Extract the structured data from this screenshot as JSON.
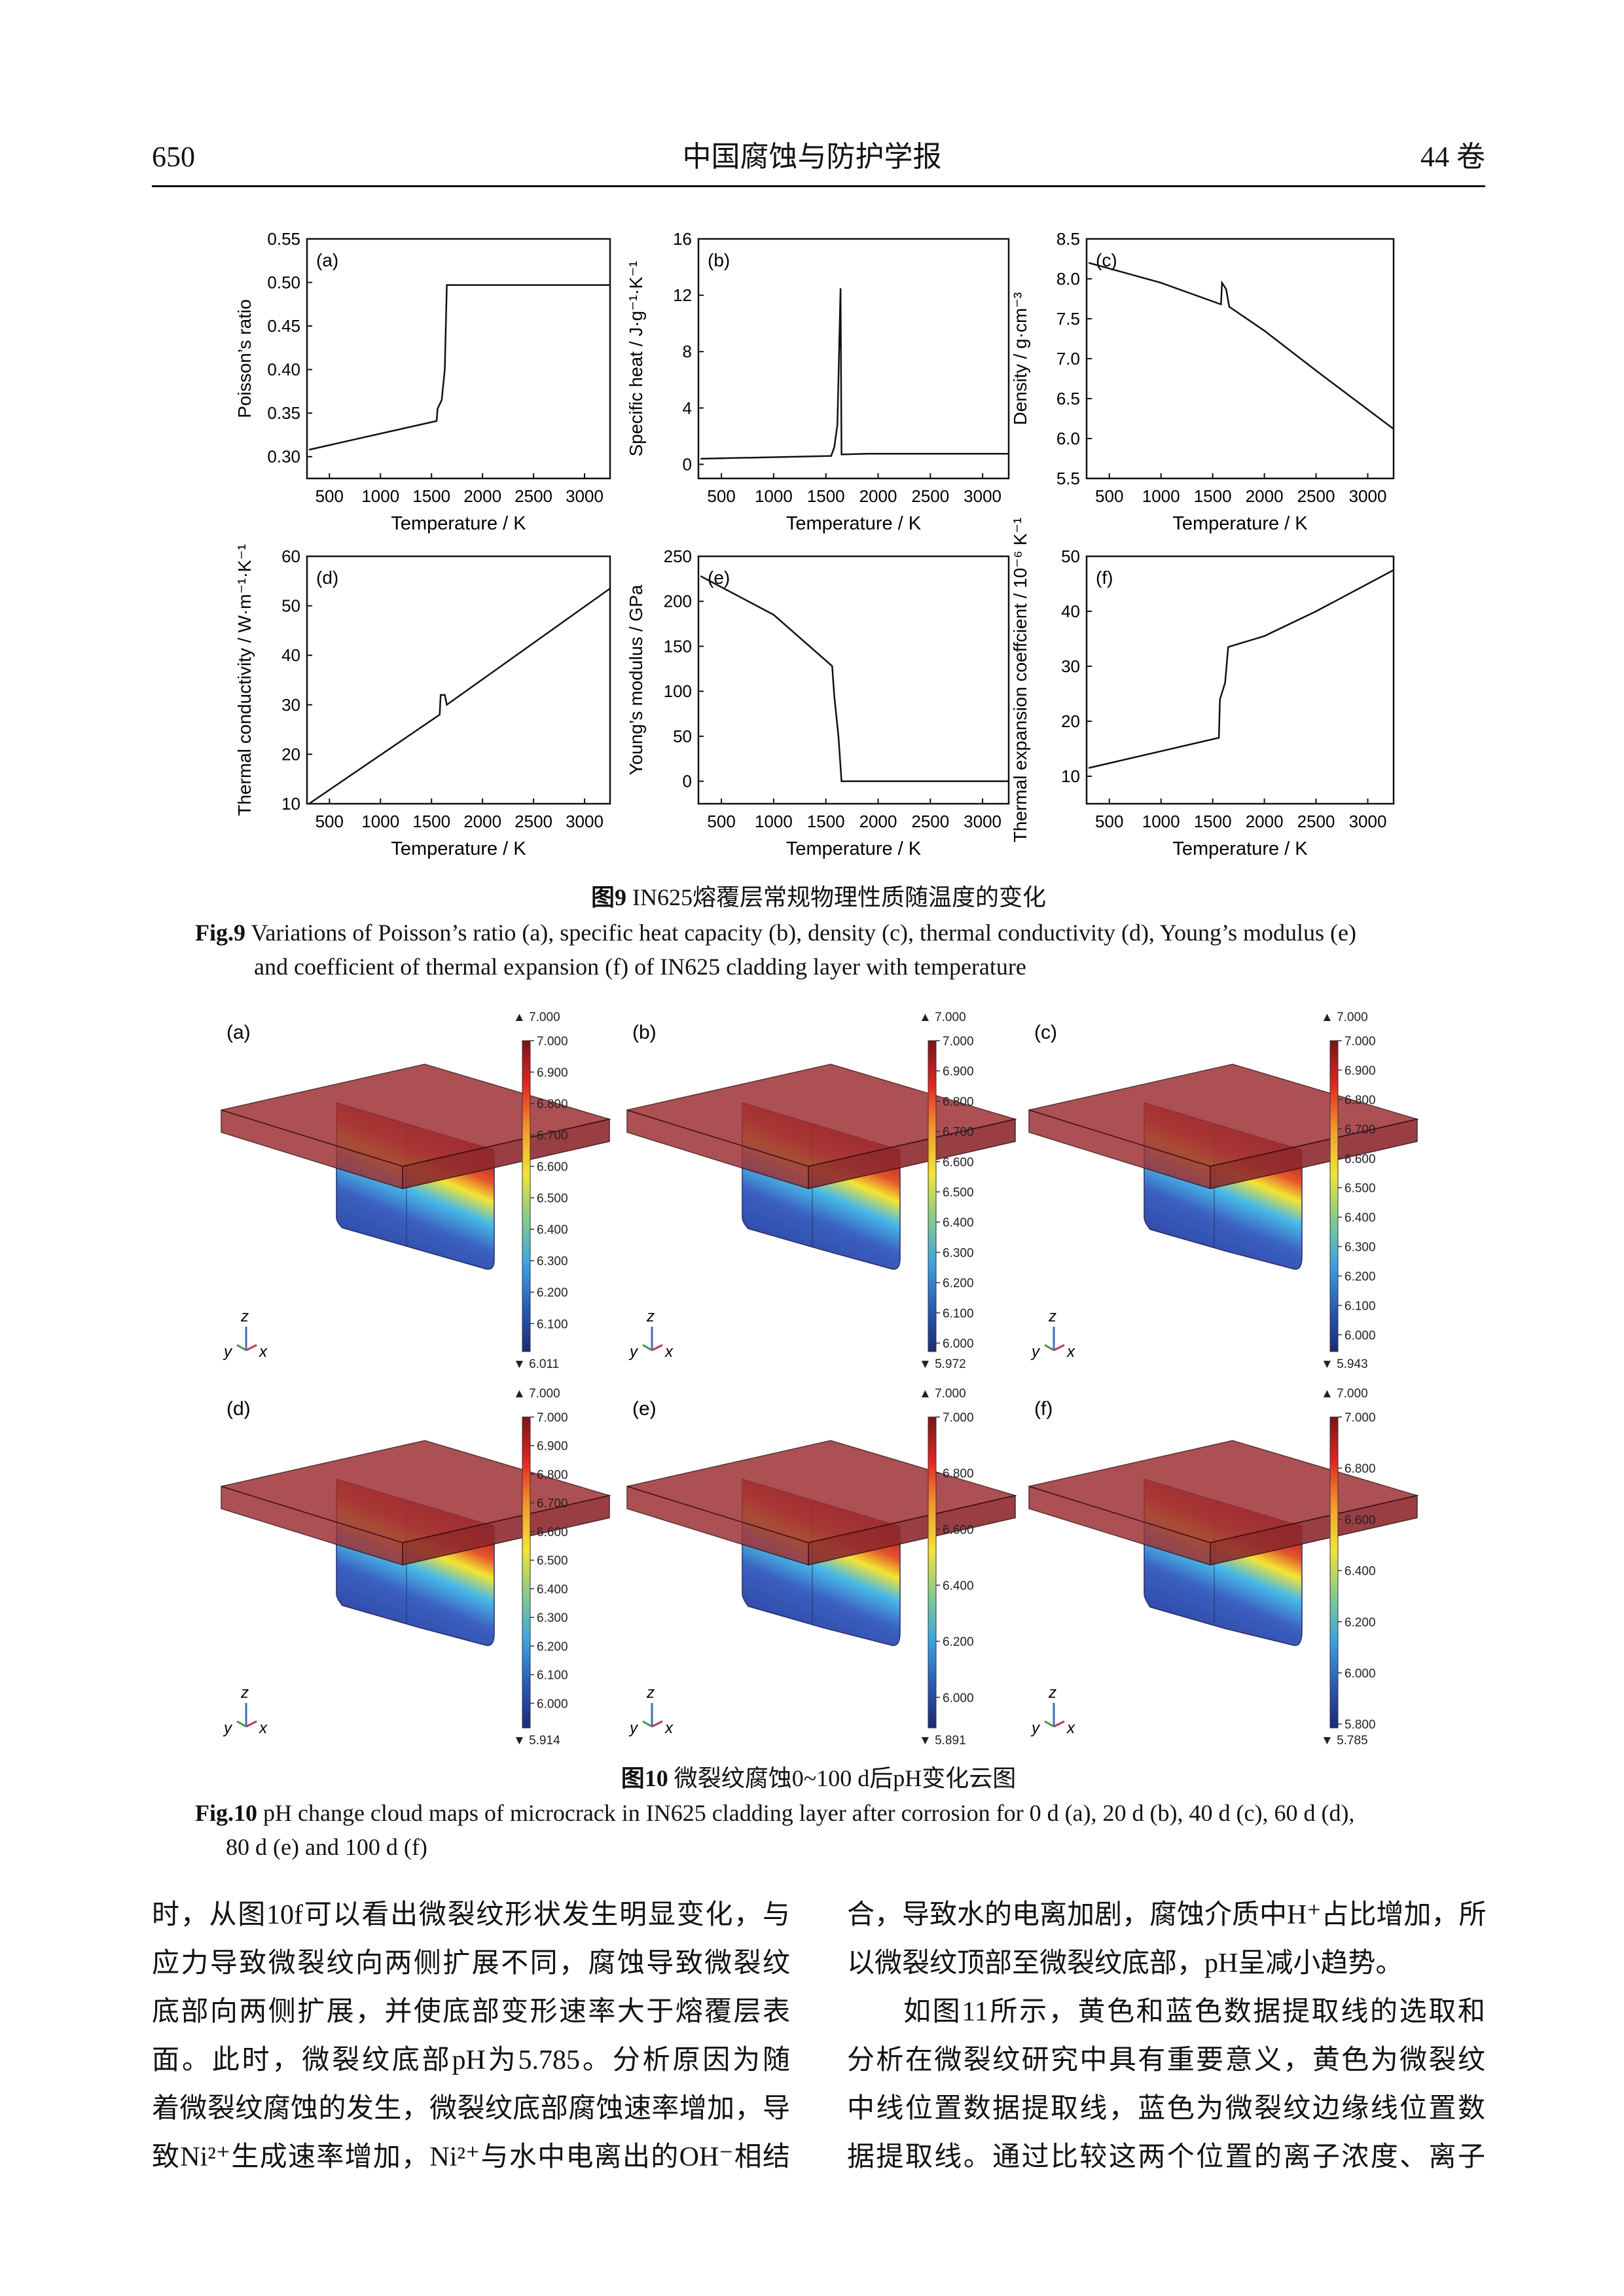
{
  "header": {
    "page_number": "650",
    "journal": "中国腐蚀与防护学报",
    "volume": "44 卷"
  },
  "fig9": {
    "caption_cn_label": "图9",
    "caption_cn": "IN625熔覆层常规物理性质随温度的变化",
    "caption_en_label": "Fig.9",
    "caption_en_1": "Variations of Poisson’s ratio (a), specific heat capacity (b), density (c), thermal conductivity (d), Young’s modulus (e)",
    "caption_en_2": "and coefficient of thermal expansion (f) of IN625 cladding layer with temperature"
  },
  "chart_data": [
    {
      "type": "line",
      "panel": "(a)",
      "xlabel": "Temperature / K",
      "ylabel": "Poisson’s ratio",
      "xlim": [
        280,
        3250
      ],
      "ylim": [
        0.275,
        0.55
      ],
      "xticks": [
        500,
        1000,
        1500,
        2000,
        2500,
        3000
      ],
      "yticks": [
        "0.30",
        "0.35",
        "0.40",
        "0.45",
        "0.50",
        "0.55"
      ],
      "x": [
        300,
        1550,
        1560,
        1600,
        1630,
        1650,
        2000,
        3250
      ],
      "y": [
        0.308,
        0.341,
        0.355,
        0.365,
        0.4,
        0.497,
        0.497,
        0.497
      ]
    },
    {
      "type": "line",
      "panel": "(b)",
      "xlabel": "Temperature / K",
      "ylabel": "Specific heat / J·g⁻¹·K⁻¹",
      "xlim": [
        280,
        3250
      ],
      "ylim": [
        -1,
        16
      ],
      "xticks": [
        500,
        1000,
        1500,
        2000,
        2500,
        3000
      ],
      "yticks": [
        "0",
        "4",
        "8",
        "12",
        "16"
      ],
      "x": [
        300,
        1550,
        1580,
        1610,
        1640,
        1650,
        1900,
        2100,
        3250
      ],
      "y": [
        0.4,
        0.6,
        1.2,
        2.8,
        12.5,
        0.7,
        0.75,
        0.75,
        0.75
      ]
    },
    {
      "type": "line",
      "panel": "(c)",
      "xlabel": "Temperature / K",
      "ylabel": "Density / g·cm⁻³",
      "xlim": [
        280,
        3250
      ],
      "ylim": [
        5.5,
        8.5
      ],
      "xticks": [
        500,
        1000,
        1500,
        2000,
        2500,
        3000
      ],
      "yticks": [
        "5.5",
        "6.0",
        "6.5",
        "7.0",
        "7.5",
        "8.0",
        "8.5"
      ],
      "x": [
        300,
        1000,
        1580,
        1590,
        1630,
        1660,
        2000,
        2500,
        3250
      ],
      "y": [
        8.2,
        7.95,
        7.68,
        7.95,
        7.87,
        7.65,
        7.35,
        6.85,
        6.12
      ]
    },
    {
      "type": "line",
      "panel": "(d)",
      "xlabel": "Temperature / K",
      "ylabel": "Thermal conductivity / W·m⁻¹·K⁻¹",
      "xlim": [
        280,
        3250
      ],
      "ylim": [
        10,
        60
      ],
      "xticks": [
        500,
        1000,
        1500,
        2000,
        2500,
        3000
      ],
      "yticks": [
        "10",
        "20",
        "30",
        "40",
        "50",
        "60"
      ],
      "x": [
        300,
        1580,
        1590,
        1630,
        1650,
        3250
      ],
      "y": [
        10,
        28,
        32,
        32,
        30,
        53.5
      ]
    },
    {
      "type": "line",
      "panel": "(e)",
      "xlabel": "Temperature / K",
      "ylabel": "Young’s modulus / GPa",
      "xlim": [
        280,
        3250
      ],
      "ylim": [
        -25,
        250
      ],
      "xticks": [
        500,
        1000,
        1500,
        2000,
        2500,
        3000
      ],
      "yticks": [
        "0",
        "50",
        "100",
        "150",
        "200",
        "250"
      ],
      "x": [
        300,
        1000,
        1560,
        1580,
        1620,
        1650,
        3250
      ],
      "y": [
        228,
        185,
        128,
        95,
        50,
        0,
        0
      ]
    },
    {
      "type": "line",
      "panel": "(f)",
      "xlabel": "Temperature / K",
      "ylabel": "Thermal expansion coeffcient  / 10⁻⁶ K⁻¹",
      "xlim": [
        280,
        3250
      ],
      "ylim": [
        5,
        50
      ],
      "xticks": [
        500,
        1000,
        1500,
        2000,
        2500,
        3000
      ],
      "yticks": [
        "10",
        "20",
        "30",
        "40",
        "50"
      ],
      "x": [
        300,
        1560,
        1570,
        1620,
        1650,
        2000,
        2500,
        3250
      ],
      "y": [
        11.5,
        17,
        24,
        27,
        33.5,
        35.5,
        40,
        47.5
      ]
    }
  ],
  "fig10": {
    "caption_cn_label": "图10",
    "caption_cn": "微裂纹腐蚀0~100 d后pH变化云图",
    "caption_en_label": "Fig.10",
    "caption_en_1": "pH change cloud maps of microcrack in IN625 cladding layer after corrosion for 0 d (a), 20 d (b), 40 d (c), 60 d (d),",
    "caption_en_2": "80 d (e) and 100 d (f)",
    "axis_labels": {
      "z": "z",
      "y": "y",
      "x": "x"
    },
    "colormap": [
      "#1b2a7a",
      "#2a5cb8",
      "#3aa6e0",
      "#86cc8a",
      "#f3e531",
      "#f59a2c",
      "#e32621",
      "#7c1416"
    ],
    "slab_color": "#9e3236",
    "panels": [
      {
        "label": "(a)",
        "max": "▲ 7.000",
        "min": "▼ 6.011",
        "min_value": 6.011,
        "ticks": [
          "7.000",
          "6.900",
          "6.800",
          "6.700",
          "6.600",
          "6.500",
          "6.400",
          "6.300",
          "6.200",
          "6.100"
        ]
      },
      {
        "label": "(b)",
        "max": "▲ 7.000",
        "min": "▼ 5.972",
        "min_value": 5.972,
        "ticks": [
          "7.000",
          "6.900",
          "6.800",
          "6.700",
          "6.600",
          "6.500",
          "6.400",
          "6.300",
          "6.200",
          "6.100",
          "6.000"
        ]
      },
      {
        "label": "(c)",
        "max": "▲ 7.000",
        "min": "▼ 5.943",
        "min_value": 5.943,
        "ticks": [
          "7.000",
          "6.900",
          "6.800",
          "6.700",
          "6.600",
          "6.500",
          "6.400",
          "6.300",
          "6.200",
          "6.100",
          "6.000"
        ]
      },
      {
        "label": "(d)",
        "max": "▲ 7.000",
        "min": "▼ 5.914",
        "min_value": 5.914,
        "ticks": [
          "7.000",
          "6.900",
          "6.800",
          "6.700",
          "6.600",
          "6.500",
          "6.400",
          "6.300",
          "6.200",
          "6.100",
          "6.000"
        ]
      },
      {
        "label": "(e)",
        "max": "▲ 7.000",
        "min": "▼ 5.891",
        "min_value": 5.891,
        "ticks": [
          "7.000",
          "6.800",
          "6.600",
          "6.400",
          "6.200",
          "6.000"
        ]
      },
      {
        "label": "(f)",
        "max": "▲ 7.000",
        "min": "▼ 5.785",
        "min_value": 5.785,
        "ticks": [
          "7.000",
          "6.800",
          "6.600",
          "6.400",
          "6.200",
          "6.000",
          "5.800"
        ]
      }
    ]
  },
  "body": {
    "left": [
      "时，从图10f可以看出微裂纹形状发生明显变化，与",
      "应力导致微裂纹向两侧扩展不同，腐蚀导致微裂纹",
      "底部向两侧扩展，并使底部变形速率大于熔覆层表",
      "面。此时，微裂纹底部pH为5.785。分析原因为随",
      "着微裂纹腐蚀的发生，微裂纹底部腐蚀速率增加，导",
      "致Ni²⁺生成速率增加，Ni²⁺与水中电离出的OH⁻相结"
    ],
    "right": [
      "合，导致水的电离加剧，腐蚀介质中H⁺占比增加，所",
      "以微裂纹顶部至微裂纹底部，pH呈减小趋势。",
      "如图11所示，黄色和蓝色数据提取线的选取和",
      "分析在微裂纹研究中具有重要意义，黄色为微裂纹",
      "中线位置数据提取线，蓝色为微裂纹边缘线位置数",
      "据提取线。通过比较这两个位置的离子浓度、离子"
    ]
  }
}
